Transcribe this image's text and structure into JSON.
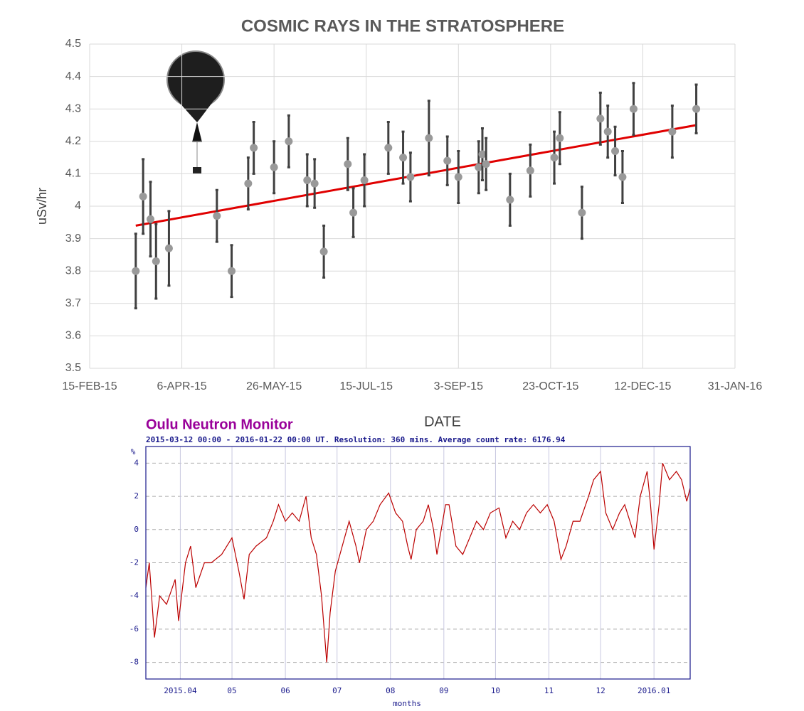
{
  "chart_data": [
    {
      "type": "scatter",
      "title": "COSMIC RAYS IN THE STRATOSPHERE",
      "xlabel": "DATE",
      "ylabel": "uSv/hr",
      "x": [
        "2015-03-12",
        "2015-03-16",
        "2015-03-20",
        "2015-03-23",
        "2015-03-30",
        "2015-04-25",
        "2015-05-03",
        "2015-05-12",
        "2015-05-15",
        "2015-05-26",
        "2015-06-03",
        "2015-06-13",
        "2015-06-17",
        "2015-06-22",
        "2015-07-05",
        "2015-07-08",
        "2015-07-14",
        "2015-07-27",
        "2015-08-04",
        "2015-08-08",
        "2015-08-18",
        "2015-08-28",
        "2015-09-03",
        "2015-09-14",
        "2015-09-16",
        "2015-09-18",
        "2015-10-01",
        "2015-10-12",
        "2015-10-25",
        "2015-10-28",
        "2015-11-09",
        "2015-11-19",
        "2015-11-23",
        "2015-11-27",
        "2015-12-01",
        "2015-12-07",
        "2015-12-28",
        "2016-01-10"
      ],
      "values": [
        3.8,
        4.03,
        3.96,
        3.83,
        3.87,
        3.97,
        3.8,
        4.07,
        4.18,
        4.12,
        4.2,
        4.08,
        4.07,
        3.86,
        4.13,
        3.98,
        4.08,
        4.18,
        4.15,
        4.09,
        4.21,
        4.14,
        4.09,
        4.12,
        4.16,
        4.13,
        4.02,
        4.11,
        4.15,
        4.21,
        3.98,
        4.27,
        4.23,
        4.17,
        4.09,
        4.3,
        4.23,
        4.3
      ],
      "errors": [
        0.115,
        0.115,
        0.115,
        0.115,
        0.115,
        0.08,
        0.08,
        0.08,
        0.08,
        0.08,
        0.08,
        0.08,
        0.075,
        0.08,
        0.08,
        0.075,
        0.08,
        0.08,
        0.08,
        0.075,
        0.115,
        0.075,
        0.08,
        0.08,
        0.08,
        0.08,
        0.08,
        0.08,
        0.08,
        0.08,
        0.08,
        0.08,
        0.08,
        0.075,
        0.08,
        0.08,
        0.08,
        0.075
      ],
      "color": "#999999",
      "error_color": "#404040",
      "trendline": {
        "x": [
          "2015-03-12",
          "2016-01-10"
        ],
        "values": [
          3.94,
          4.25
        ],
        "color": "#e00000"
      },
      "xlim": [
        "2015-02-15",
        "2016-01-31"
      ],
      "xticks": [
        {
          "value": "2015-02-15",
          "label": "15-FEB-15"
        },
        {
          "value": "2015-04-06",
          "label": "6-APR-15"
        },
        {
          "value": "2015-05-26",
          "label": "26-MAY-15"
        },
        {
          "value": "2015-07-15",
          "label": "15-JUL-15"
        },
        {
          "value": "2015-09-03",
          "label": "3-SEP-15"
        },
        {
          "value": "2015-10-23",
          "label": "23-OCT-15"
        },
        {
          "value": "2015-12-12",
          "label": "12-DEC-15"
        },
        {
          "value": "2016-01-31",
          "label": "31-JAN-16"
        }
      ],
      "ylim": [
        3.5,
        4.5
      ],
      "yticks": [
        3.5,
        3.6,
        3.7,
        3.8,
        3.9,
        4,
        4.1,
        4.2,
        4.3,
        4.4,
        4.5
      ],
      "grid": true
    },
    {
      "type": "line",
      "title": "Oulu Neutron Monitor",
      "subtitle": "2015-03-12 00:00 - 2016-01-22 00:00 UT. Resolution: 360 mins. Average count rate: 6176.94",
      "xlabel": "months",
      "ylabel": "%",
      "color": "#bb0000",
      "x": [
        "2015-03-12",
        "2015-03-14",
        "2015-03-17",
        "2015-03-20",
        "2015-03-24",
        "2015-03-29",
        "2015-03-31",
        "2015-04-04",
        "2015-04-07",
        "2015-04-10",
        "2015-04-15",
        "2015-04-19",
        "2015-04-25",
        "2015-05-01",
        "2015-05-05",
        "2015-05-08",
        "2015-05-11",
        "2015-05-15",
        "2015-05-21",
        "2015-05-25",
        "2015-05-28",
        "2015-06-01",
        "2015-06-05",
        "2015-06-09",
        "2015-06-13",
        "2015-06-16",
        "2015-06-19",
        "2015-06-22",
        "2015-06-25",
        "2015-06-27",
        "2015-06-30",
        "2015-07-04",
        "2015-07-08",
        "2015-07-12",
        "2015-07-14",
        "2015-07-18",
        "2015-07-22",
        "2015-07-26",
        "2015-07-31",
        "2015-08-04",
        "2015-08-08",
        "2015-08-11",
        "2015-08-13",
        "2015-08-16",
        "2015-08-20",
        "2015-08-23",
        "2015-08-26",
        "2015-08-28",
        "2015-09-02",
        "2015-09-04",
        "2015-09-08",
        "2015-09-12",
        "2015-09-16",
        "2015-09-20",
        "2015-09-24",
        "2015-09-28",
        "2015-10-03",
        "2015-10-07",
        "2015-10-11",
        "2015-10-15",
        "2015-10-19",
        "2015-10-23",
        "2015-10-27",
        "2015-10-31",
        "2015-11-04",
        "2015-11-08",
        "2015-11-11",
        "2015-11-15",
        "2015-11-19",
        "2015-11-24",
        "2015-11-27",
        "2015-12-01",
        "2015-12-04",
        "2015-12-08",
        "2015-12-12",
        "2015-12-15",
        "2015-12-18",
        "2015-12-21",
        "2015-12-24",
        "2015-12-28",
        "2015-12-30",
        "2016-01-01",
        "2016-01-04",
        "2016-01-06",
        "2016-01-10",
        "2016-01-14",
        "2016-01-17",
        "2016-01-20",
        "2016-01-22"
      ],
      "values": [
        -3.5,
        -2,
        -6.5,
        -4,
        -4.5,
        -3,
        -5.5,
        -2,
        -1,
        -3.5,
        -2,
        -2,
        -1.5,
        -0.5,
        -2.5,
        -4.2,
        -1.5,
        -1,
        -0.5,
        0.5,
        1.5,
        0.5,
        1,
        0.5,
        2,
        -0.5,
        -1.5,
        -4,
        -8,
        -5,
        -2.5,
        -1,
        0.5,
        -1,
        -2,
        0,
        0.5,
        1.5,
        2.2,
        1,
        0.5,
        -1,
        -1.8,
        0,
        0.5,
        1.5,
        0,
        -1.5,
        1.5,
        1.5,
        -1,
        -1.5,
        -0.5,
        0.5,
        0,
        1,
        1.3,
        -0.5,
        0.5,
        0,
        1,
        1.5,
        1,
        1.5,
        0.5,
        -1.8,
        -1,
        0.5,
        0.5,
        2,
        3,
        3.5,
        1,
        0,
        1,
        1.5,
        0.5,
        -0.5,
        2,
        3.5,
        1.5,
        -1.2,
        1.5,
        4,
        3,
        3.5,
        3,
        1.7,
        2.5
      ],
      "xlim": [
        "2015-03-12",
        "2016-01-22"
      ],
      "xticks": [
        {
          "value": "2015-04-01",
          "label": "2015.04"
        },
        {
          "value": "2015-05-01",
          "label": "05"
        },
        {
          "value": "2015-06-01",
          "label": "06"
        },
        {
          "value": "2015-07-01",
          "label": "07"
        },
        {
          "value": "2015-08-01",
          "label": "08"
        },
        {
          "value": "2015-09-01",
          "label": "09"
        },
        {
          "value": "2015-10-01",
          "label": "10"
        },
        {
          "value": "2015-11-01",
          "label": "11"
        },
        {
          "value": "2015-12-01",
          "label": "12"
        },
        {
          "value": "2016-01-01",
          "label": "2016.01"
        }
      ],
      "ylim": [
        -9,
        5
      ],
      "yticks": [
        -8,
        -6,
        -4,
        -2,
        0,
        2,
        4
      ],
      "grid": true
    }
  ]
}
